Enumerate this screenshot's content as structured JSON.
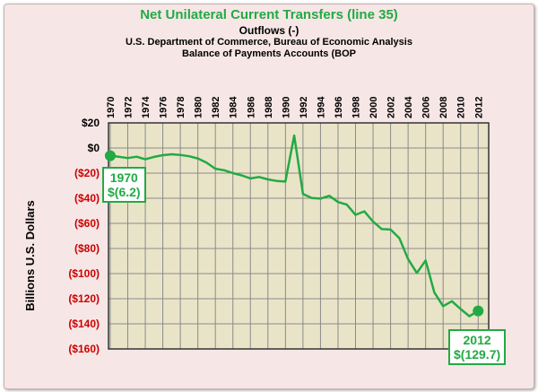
{
  "chart_data": {
    "type": "line",
    "title": "Net Unilateral Current Transfers (line 35)",
    "subtitle_lines": [
      "Outflows (-)",
      "U.S. Department of Commerce, Bureau of Economic Analysis",
      "Balance of Payments Accounts (BOP"
    ],
    "ylabel": "Billions U.S. Dollars",
    "ylim": [
      -160,
      20
    ],
    "yticks": [
      20,
      0,
      -20,
      -40,
      -60,
      -80,
      -100,
      -120,
      -140,
      -160
    ],
    "ytick_labels": [
      "$20",
      "$0",
      "($20)",
      "($40)",
      "($60)",
      "($80)",
      "($100)",
      "($120)",
      "($140)",
      "($160)"
    ],
    "xticks": [
      1970,
      1972,
      1974,
      1976,
      1978,
      1980,
      1982,
      1984,
      1986,
      1988,
      1990,
      1992,
      1994,
      1996,
      1998,
      2000,
      2002,
      2004,
      2006,
      2008,
      2010,
      2012
    ],
    "x": [
      1970,
      1971,
      1972,
      1973,
      1974,
      1975,
      1976,
      1977,
      1978,
      1979,
      1980,
      1981,
      1982,
      1983,
      1984,
      1985,
      1986,
      1987,
      1988,
      1989,
      1990,
      1991,
      1992,
      1993,
      1994,
      1995,
      1996,
      1997,
      1998,
      1999,
      2000,
      2001,
      2002,
      2003,
      2004,
      2005,
      2006,
      2007,
      2008,
      2009,
      2010,
      2011,
      2012
    ],
    "series": [
      {
        "values": [
          -6.2,
          -7,
          -8,
          -6.9,
          -9,
          -7.1,
          -5.7,
          -5,
          -5.5,
          -6.6,
          -8.3,
          -11.7,
          -16.5,
          -17.7,
          -20,
          -21.8,
          -24.2,
          -23.1,
          -25,
          -26.2,
          -26.7,
          9.9,
          -36.6,
          -39.8,
          -40.3,
          -38.1,
          -43,
          -45.1,
          -53.2,
          -50.4,
          -58.6,
          -64.6,
          -64.9,
          -71.8,
          -88.4,
          -99.5,
          -89.6,
          -115.1,
          -125.9,
          -122.0,
          -128.2,
          -133.9,
          -129.7
        ],
        "color": "#22aa44"
      }
    ],
    "annotations": [
      {
        "year_label": "1970",
        "value_label": "$(6.2)"
      },
      {
        "year_label": "2012",
        "value_label": "$(129.7)"
      }
    ],
    "grid": true,
    "plot_background": "#e9e4c8",
    "negative_label_color": "#cc0000",
    "positive_label_color": "#000000"
  }
}
